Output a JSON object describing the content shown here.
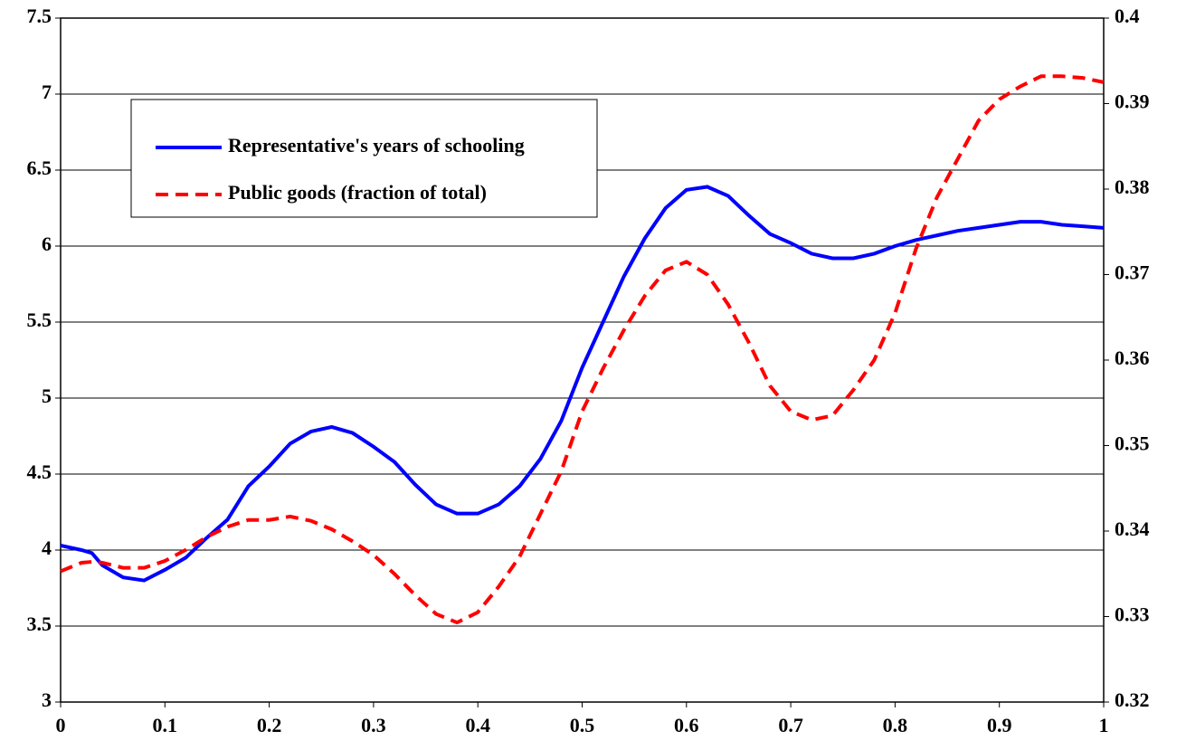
{
  "chart_data": {
    "type": "line",
    "x": [
      0,
      0.02,
      0.03,
      0.04,
      0.06,
      0.08,
      0.1,
      0.12,
      0.14,
      0.16,
      0.18,
      0.2,
      0.22,
      0.24,
      0.26,
      0.28,
      0.3,
      0.32,
      0.34,
      0.36,
      0.38,
      0.4,
      0.42,
      0.44,
      0.46,
      0.48,
      0.5,
      0.52,
      0.54,
      0.56,
      0.58,
      0.6,
      0.62,
      0.64,
      0.66,
      0.68,
      0.7,
      0.72,
      0.74,
      0.76,
      0.78,
      0.8,
      0.82,
      0.84,
      0.86,
      0.88,
      0.9,
      0.92,
      0.94,
      0.96,
      0.98,
      1
    ],
    "series": [
      {
        "name": "Representative's years of schooling",
        "color": "#0000ff",
        "axis": "y",
        "values": [
          4.03,
          4.0,
          3.98,
          3.9,
          3.82,
          3.8,
          3.87,
          3.95,
          4.08,
          4.2,
          4.42,
          4.55,
          4.7,
          4.78,
          4.81,
          4.77,
          4.68,
          4.58,
          4.43,
          4.3,
          4.24,
          4.24,
          4.3,
          4.42,
          4.6,
          4.85,
          5.2,
          5.5,
          5.8,
          6.05,
          6.25,
          6.37,
          6.39,
          6.33,
          6.2,
          6.08,
          6.02,
          5.95,
          5.92,
          5.92,
          5.95,
          6.0,
          6.04,
          6.07,
          6.1,
          6.12,
          6.14,
          6.16,
          6.16,
          6.14,
          6.13,
          6.12
        ]
      },
      {
        "name": "Public goods (fraction of total)",
        "color": "#ff0000",
        "axis": "y2",
        "dashed": true,
        "values": [
          0.3353,
          0.3363,
          0.3364,
          0.3363,
          0.3357,
          0.3357,
          0.3365,
          0.3378,
          0.3393,
          0.3405,
          0.3413,
          0.3413,
          0.3417,
          0.3412,
          0.3402,
          0.3388,
          0.3372,
          0.335,
          0.3325,
          0.3303,
          0.3293,
          0.3305,
          0.3335,
          0.337,
          0.342,
          0.347,
          0.354,
          0.359,
          0.3635,
          0.3675,
          0.3705,
          0.3715,
          0.37,
          0.3665,
          0.362,
          0.357,
          0.354,
          0.353,
          0.3535,
          0.3565,
          0.36,
          0.3655,
          0.373,
          0.379,
          0.3835,
          0.388,
          0.3905,
          0.392,
          0.3932,
          0.3932,
          0.393,
          0.3925
        ]
      }
    ],
    "xlim": [
      0,
      1
    ],
    "xticks": [
      0,
      0.1,
      0.2,
      0.3,
      0.4,
      0.5,
      0.6,
      0.7,
      0.8,
      0.9,
      1
    ],
    "ylim": [
      3,
      7.5
    ],
    "yticks": [
      3,
      3.5,
      4,
      4.5,
      5,
      5.5,
      6,
      6.5,
      7,
      7.5
    ],
    "y2lim": [
      0.32,
      0.4
    ],
    "y2ticks": [
      0.32,
      0.33,
      0.34,
      0.35,
      0.36,
      0.37,
      0.38,
      0.39,
      0.4
    ],
    "grid": true
  }
}
